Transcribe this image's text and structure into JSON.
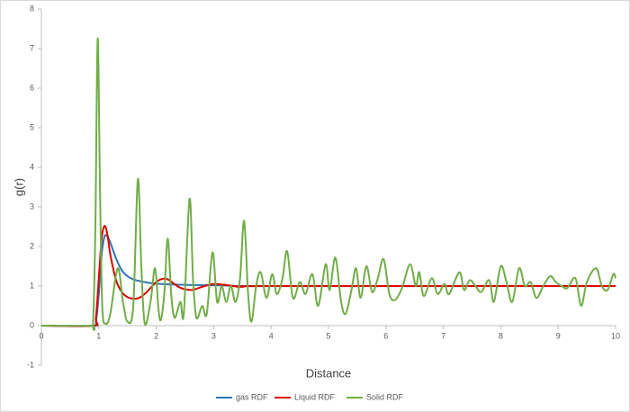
{
  "chart_data": {
    "type": "line",
    "x_label": "Distance",
    "y_label": "g(r)",
    "xlim": [
      0,
      10
    ],
    "xticks": [
      0,
      1,
      2,
      3,
      4,
      5,
      6,
      7,
      8,
      9,
      10
    ],
    "ylim": [
      -1,
      8
    ],
    "yticks": [
      -1,
      0,
      1,
      2,
      3,
      4,
      5,
      6,
      7,
      8
    ],
    "grid": false,
    "legend": "bottom",
    "series": [
      {
        "name": "gas RDF",
        "color": "#2e75b6",
        "x": [
          0,
          0.9,
          0.95,
          1.0,
          1.05,
          1.1,
          1.15,
          1.2,
          1.3,
          1.4,
          1.5,
          1.6,
          1.8,
          2.0,
          2.5,
          3.0,
          3.5,
          4.0,
          10
        ],
        "values": [
          0,
          0,
          0.1,
          0.8,
          1.8,
          2.25,
          2.25,
          2.1,
          1.7,
          1.4,
          1.25,
          1.17,
          1.1,
          1.06,
          1.03,
          1.02,
          1.0,
          1.0,
          1.0
        ]
      },
      {
        "name": "Liquid RDF",
        "color": "#e00000",
        "x": [
          0,
          0.9,
          0.95,
          1.0,
          1.05,
          1.1,
          1.15,
          1.2,
          1.3,
          1.4,
          1.5,
          1.6,
          1.7,
          1.8,
          1.9,
          2.0,
          2.1,
          2.2,
          2.3,
          2.4,
          2.5,
          2.6,
          2.7,
          2.8,
          3.0,
          3.2,
          3.5,
          4.0,
          10
        ],
        "values": [
          0,
          0,
          0.2,
          1.2,
          2.2,
          2.52,
          2.3,
          1.8,
          1.15,
          0.85,
          0.72,
          0.68,
          0.7,
          0.8,
          0.95,
          1.1,
          1.18,
          1.17,
          1.07,
          0.97,
          0.92,
          0.9,
          0.93,
          0.98,
          1.05,
          1.03,
          0.98,
          1.0,
          1.0
        ]
      },
      {
        "name": "Solid RDF",
        "color": "#70ad47",
        "x": [
          0,
          0.85,
          0.9,
          0.94,
          0.98,
          1.02,
          1.06,
          1.12,
          1.2,
          1.33,
          1.42,
          1.5,
          1.6,
          1.68,
          1.74,
          1.8,
          1.9,
          1.98,
          2.04,
          2.08,
          2.14,
          2.2,
          2.26,
          2.32,
          2.42,
          2.48,
          2.58,
          2.64,
          2.7,
          2.8,
          2.88,
          2.98,
          3.06,
          3.14,
          3.22,
          3.3,
          3.38,
          3.46,
          3.53,
          3.6,
          3.66,
          3.74,
          3.82,
          3.92,
          4.02,
          4.1,
          4.2,
          4.28,
          4.38,
          4.5,
          4.6,
          4.72,
          4.82,
          4.95,
          5.02,
          5.12,
          5.22,
          5.3,
          5.4,
          5.48,
          5.56,
          5.66,
          5.76,
          5.86,
          5.96,
          6.06,
          6.16,
          6.28,
          6.42,
          6.52,
          6.58,
          6.66,
          6.8,
          6.9,
          7.02,
          7.1,
          7.28,
          7.36,
          7.46,
          7.56,
          7.66,
          7.8,
          7.88,
          8.0,
          8.1,
          8.2,
          8.32,
          8.42,
          8.52,
          8.62,
          8.74,
          8.86,
          8.96,
          9.06,
          9.16,
          9.3,
          9.4,
          9.5,
          9.66,
          9.76,
          9.86,
          9.96,
          10
        ],
        "values": [
          0,
          0,
          0.1,
          2.5,
          7.25,
          3.5,
          0.5,
          0.05,
          0.3,
          1.45,
          0.6,
          0.1,
          0.5,
          3.7,
          1.5,
          0.05,
          0.6,
          1.45,
          0.4,
          0.15,
          0.8,
          2.2,
          0.8,
          0.2,
          0.6,
          0.3,
          3.2,
          1.2,
          0.2,
          0.5,
          0.3,
          1.85,
          0.6,
          1.0,
          0.6,
          1.0,
          0.6,
          1.2,
          2.65,
          0.8,
          0.1,
          1.0,
          1.35,
          0.7,
          1.3,
          0.8,
          1.2,
          1.88,
          0.7,
          1.1,
          0.8,
          1.3,
          0.5,
          1.55,
          0.9,
          1.72,
          0.6,
          0.3,
          0.9,
          1.45,
          0.7,
          1.5,
          0.85,
          1.2,
          1.68,
          0.8,
          0.65,
          0.95,
          1.55,
          1.0,
          1.35,
          0.75,
          1.2,
          0.8,
          1.05,
          0.8,
          1.35,
          0.9,
          1.15,
          1.0,
          0.85,
          1.15,
          0.6,
          1.5,
          1.1,
          0.6,
          1.45,
          1.0,
          1.1,
          0.7,
          1.0,
          1.25,
          1.1,
          1.0,
          0.95,
          1.2,
          0.5,
          1.1,
          1.45,
          1.0,
          0.9,
          1.3,
          1.2
        ]
      }
    ]
  }
}
